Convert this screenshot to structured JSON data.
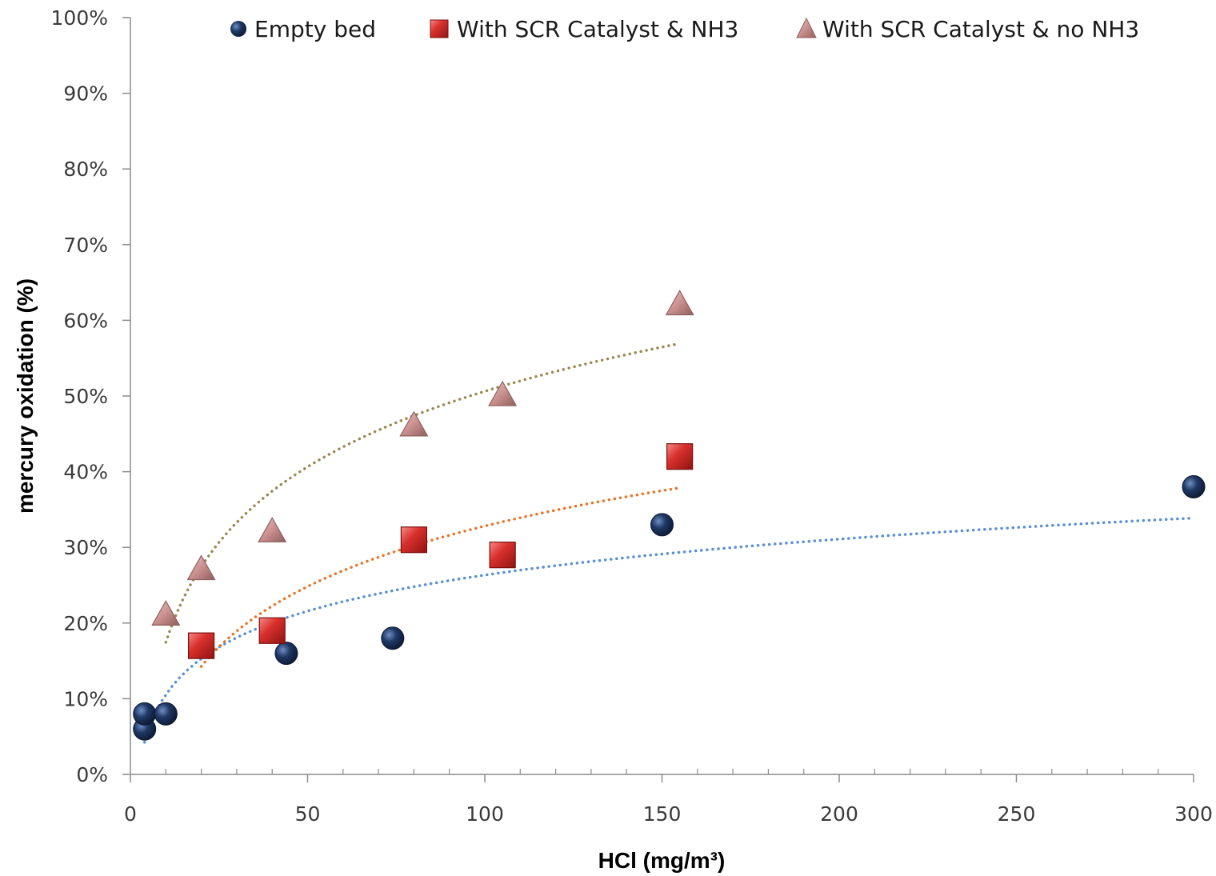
{
  "chart_data": {
    "type": "scatter",
    "title": "",
    "xlabel": "HCl (mg/m³)",
    "ylabel": "mercury oxidation  (%)",
    "xlim": [
      0,
      300
    ],
    "ylim": [
      0,
      100
    ],
    "x_ticks": [
      0,
      50,
      100,
      150,
      200,
      250,
      300
    ],
    "x_tick_labels": [
      "0",
      "50",
      "100",
      "150",
      "200",
      "250",
      "300"
    ],
    "y_ticks": [
      0,
      10,
      20,
      30,
      40,
      50,
      60,
      70,
      80,
      90,
      100
    ],
    "y_tick_labels": [
      "0%",
      "10%",
      "20%",
      "30%",
      "40%",
      "50%",
      "60%",
      "70%",
      "80%",
      "90%",
      "100%"
    ],
    "grid": false,
    "legend_position": "top",
    "series": [
      {
        "name": "Empty bed",
        "marker": "circle",
        "color": "#1f3864",
        "trendline_color": "#5b8fd6",
        "trendline": "logarithmic",
        "x": [
          4,
          4,
          10,
          44,
          74,
          150,
          300
        ],
        "y": [
          6,
          8,
          8,
          16,
          18,
          33,
          38
        ]
      },
      {
        "name": "With SCR Catalyst & NH3",
        "marker": "square",
        "color": "#d9302c",
        "trendline_color": "#e8742a",
        "trendline": "logarithmic",
        "x": [
          20,
          40,
          80,
          105,
          155
        ],
        "y": [
          17,
          19,
          31,
          29,
          42
        ]
      },
      {
        "name": "With SCR Catalyst & no NH3",
        "marker": "triangle",
        "color": "#c9908f",
        "trendline_color": "#9a8a52",
        "trendline": "logarithmic",
        "x": [
          10,
          20,
          40,
          80,
          105,
          155
        ],
        "y": [
          21,
          27,
          32,
          46,
          50,
          62
        ]
      }
    ]
  }
}
